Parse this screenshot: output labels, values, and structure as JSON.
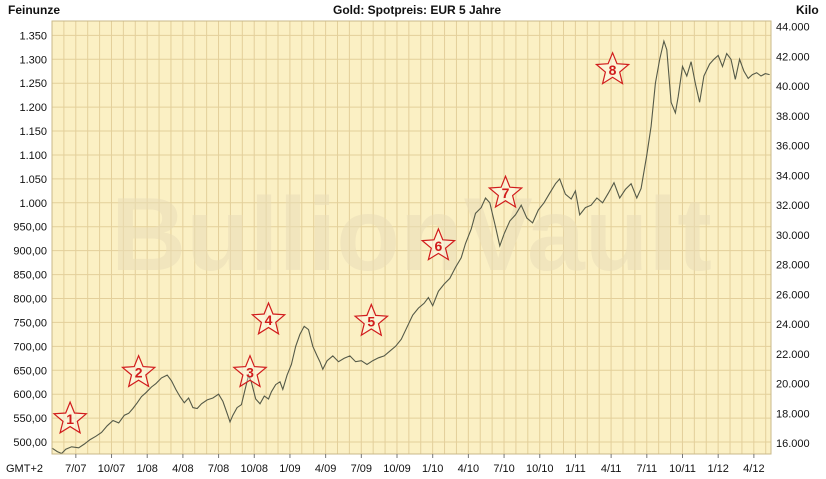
{
  "header": {
    "left_unit": "Feinunze",
    "title": "Gold: Spotpreis: EUR 5 Jahre",
    "right_unit": "Kilo"
  },
  "watermark": "BullionVault",
  "timezone_label": "GMT+2",
  "colors": {
    "plot_background": "#fbf0c4",
    "grid": "#e3cf9a",
    "line": "#555a48",
    "star_fill": "#ffffff",
    "star_stroke": "#d11c1c"
  },
  "chart_data": {
    "type": "line",
    "title": "Gold: Spotpreis: EUR 5 Jahre",
    "ylabel": "Feinunze",
    "y2label": "Kilo",
    "ylim": [
      475,
      1380
    ],
    "y2lim": [
      15.27,
      44.37
    ],
    "xlim": [
      2007.333,
      2012.37
    ],
    "grid": true,
    "y_ticks": [
      "500,00",
      "550,00",
      "600,00",
      "650,00",
      "700,00",
      "750,00",
      "800,00",
      "850,00",
      "900,00",
      "950,00",
      "1.000",
      "1.050",
      "1.100",
      "1.150",
      "1.200",
      "1.250",
      "1.300",
      "1.350"
    ],
    "y_tick_values": [
      500,
      550,
      600,
      650,
      700,
      750,
      800,
      850,
      900,
      950,
      1000,
      1050,
      1100,
      1150,
      1200,
      1250,
      1300,
      1350
    ],
    "y2_ticks": [
      "16.000",
      "18.000",
      "20.000",
      "22.000",
      "24.000",
      "26.000",
      "28.000",
      "30.000",
      "32.000",
      "34.000",
      "36.000",
      "38.000",
      "40.000",
      "42.000",
      "44.000"
    ],
    "y2_tick_values": [
      16,
      18,
      20,
      22,
      24,
      26,
      28,
      30,
      32,
      34,
      36,
      38,
      40,
      42,
      44
    ],
    "x_ticks": [
      "7/07",
      "10/07",
      "1/08",
      "4/08",
      "7/08",
      "10/08",
      "1/09",
      "4/09",
      "7/09",
      "10/09",
      "1/10",
      "4/10",
      "7/10",
      "10/10",
      "1/11",
      "4/11",
      "7/11",
      "10/11",
      "1/12",
      "4/12"
    ],
    "x_tick_values": [
      2007.5,
      2007.75,
      2008.0,
      2008.25,
      2008.5,
      2008.75,
      2009.0,
      2009.25,
      2009.5,
      2009.75,
      2010.0,
      2010.25,
      2010.5,
      2010.75,
      2011.0,
      2011.25,
      2011.5,
      2011.75,
      2012.0,
      2012.25
    ],
    "series": [
      {
        "points": [
          [
            2007.33,
            488
          ],
          [
            2007.37,
            480
          ],
          [
            2007.4,
            476
          ],
          [
            2007.43,
            485
          ],
          [
            2007.47,
            490
          ],
          [
            2007.52,
            488
          ],
          [
            2007.56,
            496
          ],
          [
            2007.6,
            505
          ],
          [
            2007.64,
            512
          ],
          [
            2007.68,
            520
          ],
          [
            2007.72,
            534
          ],
          [
            2007.76,
            545
          ],
          [
            2007.8,
            540
          ],
          [
            2007.84,
            556
          ],
          [
            2007.87,
            560
          ],
          [
            2007.9,
            570
          ],
          [
            2007.93,
            582
          ],
          [
            2007.96,
            595
          ],
          [
            2007.99,
            603
          ],
          [
            2008.03,
            615
          ],
          [
            2008.06,
            622
          ],
          [
            2008.1,
            634
          ],
          [
            2008.14,
            640
          ],
          [
            2008.17,
            628
          ],
          [
            2008.2,
            610
          ],
          [
            2008.23,
            595
          ],
          [
            2008.26,
            582
          ],
          [
            2008.29,
            592
          ],
          [
            2008.32,
            572
          ],
          [
            2008.35,
            570
          ],
          [
            2008.38,
            580
          ],
          [
            2008.42,
            588
          ],
          [
            2008.46,
            592
          ],
          [
            2008.5,
            600
          ],
          [
            2008.53,
            585
          ],
          [
            2008.56,
            560
          ],
          [
            2008.58,
            542
          ],
          [
            2008.6,
            556
          ],
          [
            2008.63,
            572
          ],
          [
            2008.66,
            578
          ],
          [
            2008.69,
            615
          ],
          [
            2008.71,
            640
          ],
          [
            2008.73,
            625
          ],
          [
            2008.76,
            590
          ],
          [
            2008.79,
            580
          ],
          [
            2008.82,
            596
          ],
          [
            2008.85,
            590
          ],
          [
            2008.87,
            605
          ],
          [
            2008.9,
            620
          ],
          [
            2008.93,
            626
          ],
          [
            2008.95,
            610
          ],
          [
            2008.98,
            640
          ],
          [
            2009.01,
            662
          ],
          [
            2009.04,
            700
          ],
          [
            2009.07,
            725
          ],
          [
            2009.1,
            742
          ],
          [
            2009.13,
            735
          ],
          [
            2009.16,
            700
          ],
          [
            2009.19,
            680
          ],
          [
            2009.21,
            668
          ],
          [
            2009.23,
            652
          ],
          [
            2009.26,
            670
          ],
          [
            2009.3,
            680
          ],
          [
            2009.34,
            668
          ],
          [
            2009.38,
            675
          ],
          [
            2009.42,
            680
          ],
          [
            2009.46,
            668
          ],
          [
            2009.5,
            670
          ],
          [
            2009.54,
            662
          ],
          [
            2009.58,
            670
          ],
          [
            2009.62,
            676
          ],
          [
            2009.66,
            680
          ],
          [
            2009.7,
            690
          ],
          [
            2009.74,
            700
          ],
          [
            2009.78,
            715
          ],
          [
            2009.82,
            740
          ],
          [
            2009.86,
            765
          ],
          [
            2009.9,
            780
          ],
          [
            2009.94,
            790
          ],
          [
            2009.97,
            802
          ],
          [
            2010.0,
            785
          ],
          [
            2010.04,
            815
          ],
          [
            2010.08,
            830
          ],
          [
            2010.12,
            842
          ],
          [
            2010.16,
            865
          ],
          [
            2010.2,
            885
          ],
          [
            2010.23,
            915
          ],
          [
            2010.27,
            945
          ],
          [
            2010.3,
            978
          ],
          [
            2010.34,
            990
          ],
          [
            2010.37,
            1010
          ],
          [
            2010.4,
            1000
          ],
          [
            2010.44,
            950
          ],
          [
            2010.47,
            910
          ],
          [
            2010.5,
            935
          ],
          [
            2010.54,
            962
          ],
          [
            2010.58,
            975
          ],
          [
            2010.62,
            995
          ],
          [
            2010.66,
            968
          ],
          [
            2010.7,
            958
          ],
          [
            2010.74,
            985
          ],
          [
            2010.78,
            1000
          ],
          [
            2010.82,
            1020
          ],
          [
            2010.86,
            1040
          ],
          [
            2010.89,
            1050
          ],
          [
            2010.93,
            1018
          ],
          [
            2010.97,
            1008
          ],
          [
            2011.0,
            1025
          ],
          [
            2011.03,
            975
          ],
          [
            2011.07,
            990
          ],
          [
            2011.11,
            995
          ],
          [
            2011.15,
            1010
          ],
          [
            2011.19,
            1000
          ],
          [
            2011.23,
            1020
          ],
          [
            2011.27,
            1042
          ],
          [
            2011.31,
            1010
          ],
          [
            2011.35,
            1028
          ],
          [
            2011.39,
            1040
          ],
          [
            2011.43,
            1010
          ],
          [
            2011.46,
            1030
          ],
          [
            2011.5,
            1100
          ],
          [
            2011.53,
            1160
          ],
          [
            2011.56,
            1250
          ],
          [
            2011.59,
            1300
          ],
          [
            2011.62,
            1338
          ],
          [
            2011.64,
            1320
          ],
          [
            2011.67,
            1210
          ],
          [
            2011.7,
            1188
          ],
          [
            2011.72,
            1222
          ],
          [
            2011.75,
            1285
          ],
          [
            2011.78,
            1265
          ],
          [
            2011.81,
            1295
          ],
          [
            2011.84,
            1250
          ],
          [
            2011.87,
            1210
          ],
          [
            2011.9,
            1265
          ],
          [
            2011.94,
            1290
          ],
          [
            2011.97,
            1300
          ],
          [
            2012.0,
            1308
          ],
          [
            2012.03,
            1285
          ],
          [
            2012.06,
            1312
          ],
          [
            2012.09,
            1300
          ],
          [
            2012.12,
            1258
          ],
          [
            2012.15,
            1300
          ],
          [
            2012.18,
            1275
          ],
          [
            2012.21,
            1260
          ],
          [
            2012.24,
            1268
          ],
          [
            2012.27,
            1272
          ],
          [
            2012.3,
            1265
          ],
          [
            2012.33,
            1270
          ],
          [
            2012.36,
            1268
          ]
        ]
      }
    ],
    "annotations": [
      {
        "label": "1",
        "x": 2007.46,
        "y": 548
      },
      {
        "label": "2",
        "x": 2007.94,
        "y": 645
      },
      {
        "label": "3",
        "x": 2008.72,
        "y": 645
      },
      {
        "label": "4",
        "x": 2008.85,
        "y": 755
      },
      {
        "label": "5",
        "x": 2009.57,
        "y": 752
      },
      {
        "label": "6",
        "x": 2010.04,
        "y": 910
      },
      {
        "label": "7",
        "x": 2010.51,
        "y": 1020
      },
      {
        "label": "8",
        "x": 2011.26,
        "y": 1278
      }
    ]
  }
}
